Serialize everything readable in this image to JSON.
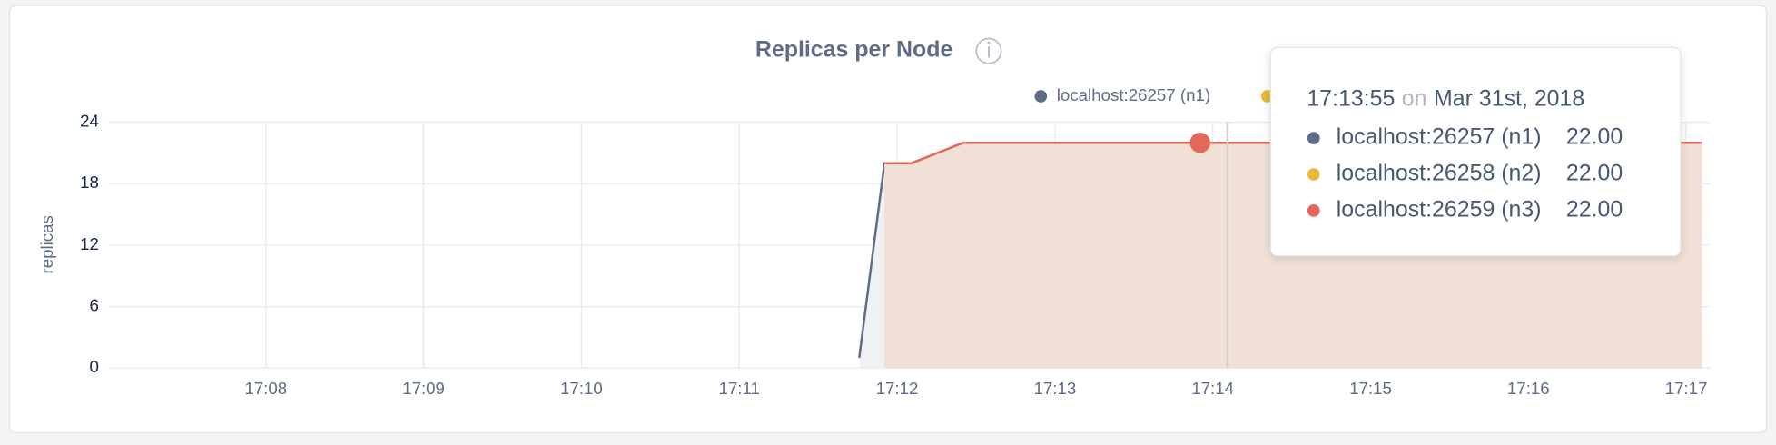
{
  "chart_data": {
    "type": "line",
    "title": "Replicas per Node",
    "y_label": "replicas",
    "x": [
      1031.76,
      1031.92,
      1032.09,
      1032.42,
      1037.1
    ],
    "series": [
      {
        "name": "localhost:26257 (n1)",
        "color": "#5f6c87",
        "values": [
          1,
          20,
          20,
          22,
          22
        ]
      },
      {
        "name": "localhost:26258 (n2)",
        "color": "#e8b93a",
        "values": [
          null,
          20,
          20,
          22,
          22
        ]
      },
      {
        "name": "localhost:26259 (n3)",
        "color": "#e4675b",
        "values": [
          null,
          20,
          20,
          22,
          22
        ]
      }
    ],
    "xlim": [
      1027,
      1037.15
    ],
    "xticks": [
      {
        "value": 1028,
        "label": "17:08"
      },
      {
        "value": 1029,
        "label": "17:09"
      },
      {
        "value": 1030,
        "label": "17:10"
      },
      {
        "value": 1031,
        "label": "17:11"
      },
      {
        "value": 1032,
        "label": "17:12"
      },
      {
        "value": 1033,
        "label": "17:13"
      },
      {
        "value": 1034,
        "label": "17:14"
      },
      {
        "value": 1035,
        "label": "17:15"
      },
      {
        "value": 1036,
        "label": "17:16"
      },
      {
        "value": 1037,
        "label": "17:17"
      }
    ],
    "ylim": [
      0,
      24
    ],
    "yticks": [
      0,
      6,
      12,
      18,
      24
    ],
    "grid": true,
    "tooltip": {
      "x": 1033.92,
      "time": "17:13:55",
      "on": "on",
      "date": "Mar 31st, 2018",
      "values": [
        22,
        22,
        22
      ],
      "value_labels": [
        "22.00",
        "22.00",
        "22.00"
      ]
    }
  }
}
